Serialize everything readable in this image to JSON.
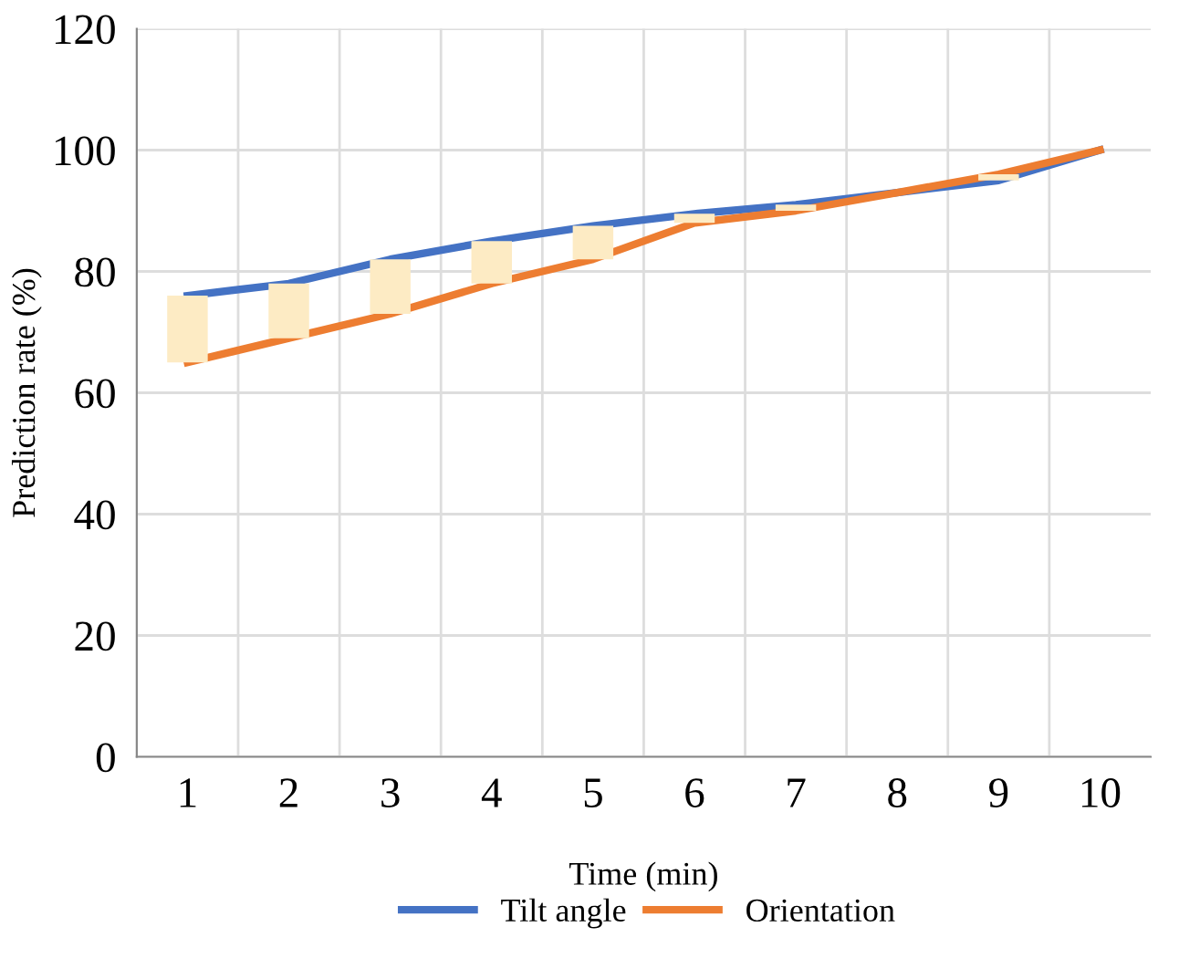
{
  "chart_data": {
    "type": "line",
    "xlabel": "Time (min)",
    "ylabel": "Prediction rate (%)",
    "categories": [
      "1",
      "2",
      "3",
      "4",
      "5",
      "6",
      "7",
      "8",
      "9",
      "10"
    ],
    "series": [
      {
        "type": "bar",
        "color": "#fdebc4",
        "base": [
          65,
          69,
          73,
          78,
          82,
          88,
          90,
          null,
          95,
          null
        ],
        "values": [
          11,
          9,
          9,
          7,
          5.5,
          1.5,
          1,
          null,
          1,
          null
        ]
      },
      {
        "name": "Tilt angle",
        "color": "#4472c4",
        "values": [
          76,
          78,
          82,
          85,
          87.5,
          89.5,
          91,
          93,
          95,
          100
        ]
      },
      {
        "name": "Orientation",
        "color": "#ed7d31",
        "values": [
          65,
          69,
          73,
          78,
          82,
          88,
          90,
          93,
          96,
          100
        ]
      }
    ],
    "ylim": [
      0,
      120
    ],
    "yticks": [
      0,
      20,
      40,
      60,
      80,
      100,
      120
    ],
    "grid": true,
    "legend": "bottom",
    "marker": "none",
    "line_style": "solid"
  }
}
